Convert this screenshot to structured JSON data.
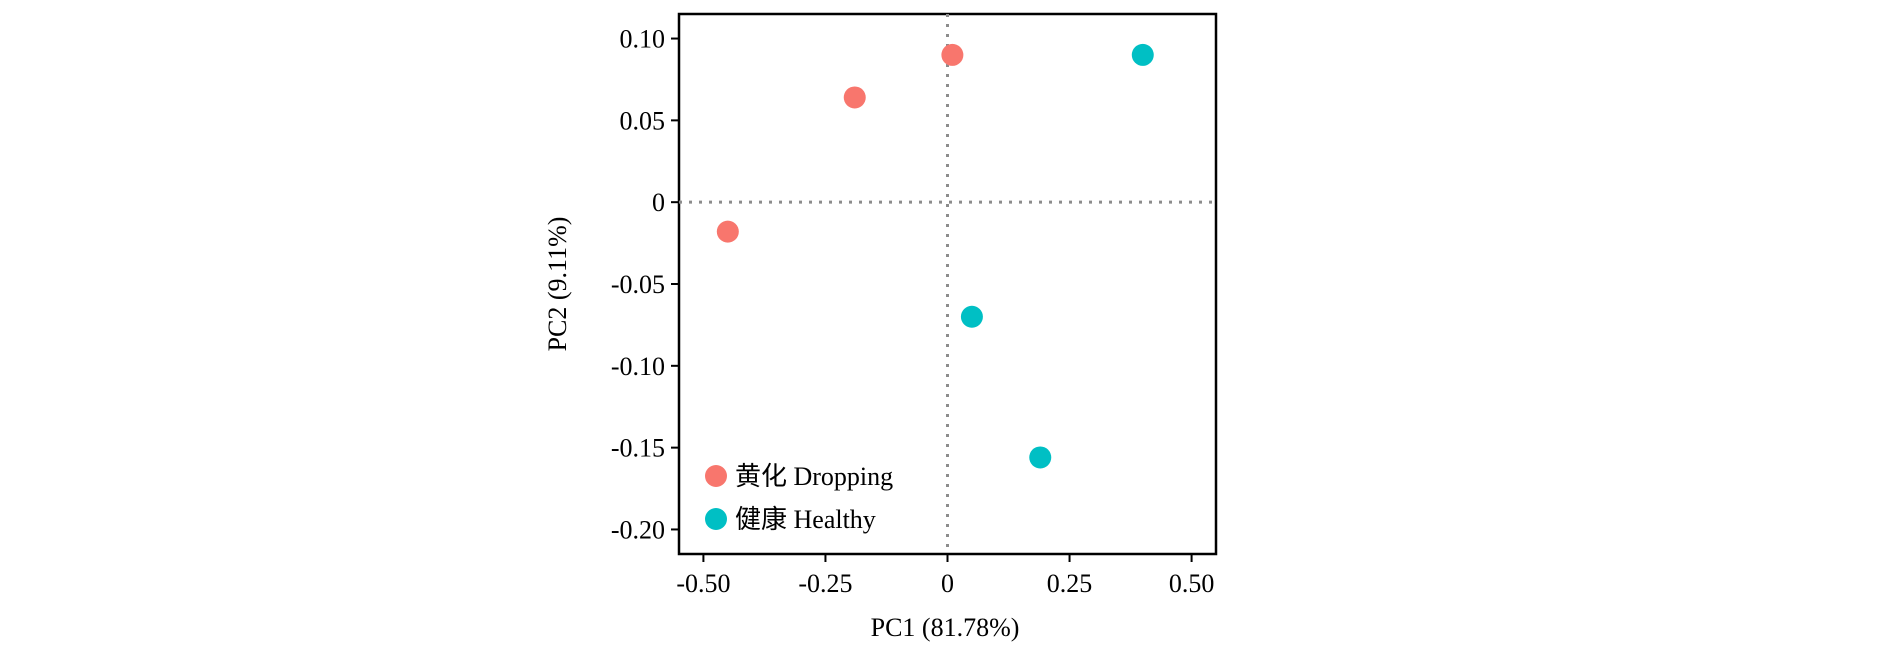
{
  "chart_data": {
    "type": "scatter",
    "xlabel": "PC1 (81.78%)",
    "ylabel": "PC2 (9.11%)",
    "xlim": [
      -0.55,
      0.55
    ],
    "ylim": [
      -0.215,
      0.115
    ],
    "x_ticks": [
      -0.5,
      -0.25,
      0,
      0.25,
      0.5
    ],
    "x_tick_labels": [
      "-0.50",
      "-0.25",
      "0",
      "0.25",
      "0.50"
    ],
    "y_ticks": [
      0.1,
      0.05,
      0,
      -0.05,
      -0.1,
      -0.15,
      -0.2
    ],
    "y_tick_labels": [
      "0.10",
      "0.05",
      "0",
      "-0.05",
      "-0.10",
      "-0.15",
      "-0.20"
    ],
    "reference_lines": {
      "x": 0,
      "y": 0,
      "style": "dotted"
    },
    "grid": false,
    "legend_position": "bottom-left",
    "series": [
      {
        "name": "黄化 Dropping",
        "color": "#F8766D",
        "points": [
          {
            "x": -0.45,
            "y": -0.018
          },
          {
            "x": -0.19,
            "y": 0.064
          },
          {
            "x": 0.01,
            "y": 0.09
          }
        ]
      },
      {
        "name": "健康 Healthy",
        "color": "#00BFC4",
        "points": [
          {
            "x": 0.4,
            "y": 0.09
          },
          {
            "x": 0.05,
            "y": -0.07
          },
          {
            "x": 0.19,
            "y": -0.156
          }
        ]
      }
    ]
  }
}
